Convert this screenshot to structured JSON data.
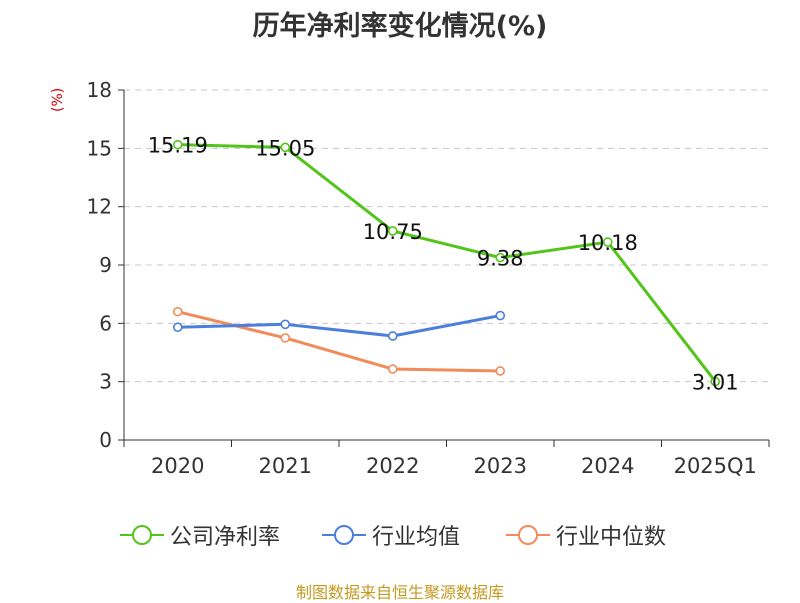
{
  "chart_data": {
    "type": "line",
    "title": "历年净利率变化情况(%)",
    "ylabel": "(%)",
    "categories": [
      "2020",
      "2021",
      "2022",
      "2023",
      "2024",
      "2025Q1"
    ],
    "yticks": [
      "0",
      "3",
      "6",
      "9",
      "12",
      "15",
      "18"
    ],
    "ylim": [
      0,
      18
    ],
    "grid": true,
    "legend_position": "bottom",
    "series": [
      {
        "name": "公司净利率",
        "color": "#52c41a",
        "values": [
          15.19,
          15.05,
          10.75,
          9.38,
          10.18,
          3.01
        ],
        "labels": [
          "15.19",
          "15.05",
          "10.75",
          "9.38",
          "10.18",
          "3.01"
        ]
      },
      {
        "name": "行业均值",
        "color": "#4a7fdb",
        "values": [
          5.8,
          5.95,
          5.35,
          6.4,
          null,
          null
        ]
      },
      {
        "name": "行业中位数",
        "color": "#f28b5a",
        "values": [
          6.6,
          5.25,
          3.65,
          3.55,
          null,
          null
        ]
      }
    ]
  },
  "source": "制图数据来自恒生聚源数据库"
}
